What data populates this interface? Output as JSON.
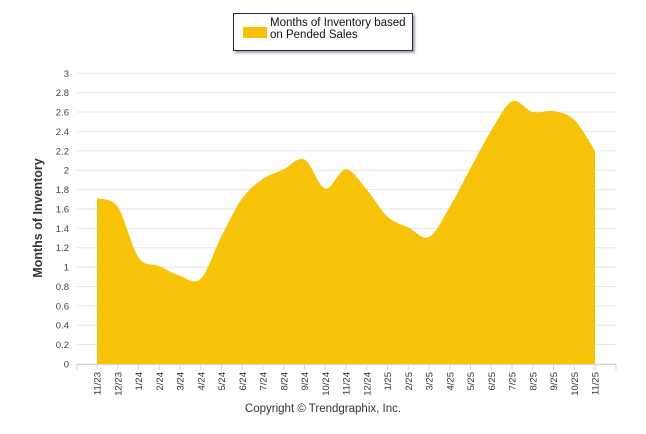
{
  "chart_data": {
    "type": "area",
    "title": "",
    "xlabel": "",
    "ylabel": "Months of Inventory",
    "ylim": [
      0,
      3
    ],
    "yticks": [
      "0",
      "0.2",
      "0.4",
      "0.6",
      "0.8",
      "1",
      "1.2",
      "1.4",
      "1.6",
      "1.8",
      "2",
      "2.2",
      "2.4",
      "2.6",
      "2.8",
      "3"
    ],
    "grid": true,
    "legend_placement": "top-center",
    "categories": [
      "11/23",
      "12/23",
      "1/24",
      "2/24",
      "3/24",
      "4/24",
      "5/24",
      "6/24",
      "7/24",
      "8/24",
      "9/24",
      "10/24",
      "11/24",
      "12/24",
      "1/25",
      "2/25",
      "3/25",
      "4/25",
      "5/25",
      "6/25",
      "7/25",
      "8/25",
      "9/25",
      "10/25",
      "11/25"
    ],
    "series": [
      {
        "name": "Months of Inventory based on Pended Sales",
        "color": "#f7c308",
        "values": [
          1.71,
          1.62,
          1.1,
          1.01,
          0.91,
          0.88,
          1.32,
          1.71,
          1.91,
          2.01,
          2.11,
          1.81,
          2.01,
          1.8,
          1.52,
          1.41,
          1.31,
          1.62,
          2.02,
          2.41,
          2.71,
          2.6,
          2.61,
          2.52,
          2.2
        ]
      }
    ]
  },
  "footer": {
    "copyright": "Copyright © Trendgraphix, Inc."
  }
}
